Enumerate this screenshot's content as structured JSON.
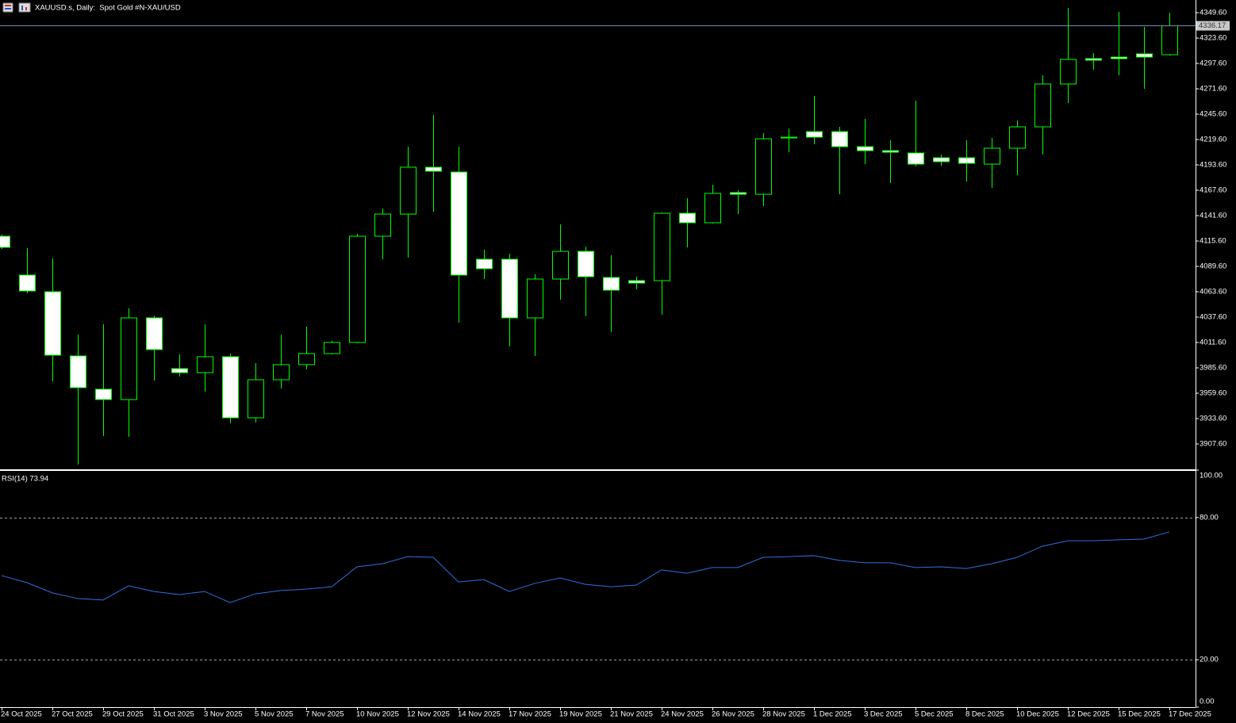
{
  "chart_data": [
    {
      "type": "candlestick",
      "title": "XAUUSD.s, Daily:  Spot Gold #N-XAU/USD",
      "categories": [
        "24 Oct 2025",
        null,
        "27 Oct 2025",
        null,
        "29 Oct 2025",
        null,
        "31 Oct 2025",
        null,
        "3 Nov 2025",
        null,
        "5 Nov 2025",
        null,
        "7 Nov 2025",
        null,
        "10 Nov 2025",
        null,
        "12 Nov 2025",
        null,
        "14 Nov 2025",
        null,
        "17 Nov 2025",
        null,
        "19 Nov 2025",
        null,
        "21 Nov 2025",
        null,
        "24 Nov 2025",
        null,
        "26 Nov 2025",
        null,
        "28 Nov 2025",
        null,
        "1 Dec 2025",
        null,
        "3 Dec 2025",
        null,
        "5 Dec 2025",
        null,
        "8 Dec 2025",
        null,
        "10 Dec 2025",
        null,
        "12 Dec 2025",
        null,
        "15 Dec 2025",
        null,
        "17 Dec 2025"
      ],
      "open": [
        4120.5,
        4080.7,
        4063.6,
        3997.8,
        3963.7,
        3953.1,
        4036.8,
        3984.8,
        3980.7,
        3997.0,
        3934.4,
        3973.4,
        3988.9,
        4000.2,
        4011.6,
        4120.5,
        4143.2,
        4191.2,
        4186.3,
        4096.9,
        4096.9,
        4036.8,
        4076.6,
        4105.0,
        4078.2,
        4075.0,
        4075.0,
        4144.0,
        4134.3,
        4165.2,
        4163.5,
        4221.2,
        4227.7,
        4227.7,
        4212.3,
        4208.2,
        4205.8,
        4200.9,
        4200.9,
        4194.4,
        4210.7,
        4232.6,
        4276.5,
        4302.5,
        4304.1,
        4307.4,
        4306.5
      ],
      "high": [
        4122.1,
        4108.3,
        4097.7,
        4019.7,
        4030.3,
        4046.5,
        4039.2,
        3999.4,
        4030.3,
        4000.2,
        3990.5,
        4019.7,
        4027.9,
        4013.2,
        4122.9,
        4148.9,
        4212.3,
        4244.8,
        4212.3,
        4106.7,
        4102.6,
        4081.5,
        4132.7,
        4109.9,
        4101.0,
        4079.0,
        4144.9,
        4159.5,
        4173.3,
        4167.6,
        4226.1,
        4231.0,
        4264.3,
        4232.6,
        4240.7,
        4218.8,
        4259.4,
        4204.2,
        4218.8,
        4221.2,
        4239.1,
        4285.4,
        4354.5,
        4308.2,
        4350.4,
        4335.0,
        4349.6
      ],
      "low": [
        4107.5,
        4062.0,
        3971.8,
        3886.5,
        3915.7,
        3914.9,
        3972.6,
        3976.7,
        3961.2,
        3928.7,
        3929.5,
        3964.5,
        3984.0,
        3999.4,
        4010.8,
        4096.9,
        4098.5,
        4145.7,
        4031.9,
        4076.6,
        4007.5,
        3997.8,
        4055.5,
        4038.4,
        4022.2,
        4066.0,
        4040.0,
        4109.1,
        4133.5,
        4143.2,
        4151.4,
        4206.6,
        4214.7,
        4163.5,
        4194.4,
        4174.9,
        4192.0,
        4192.8,
        4176.5,
        4170.0,
        4183.0,
        4204.2,
        4257.0,
        4291.1,
        4285.4,
        4271.6,
        4305.5
      ],
      "close": [
        4109.1,
        4064.4,
        3998.6,
        3965.3,
        3953.1,
        4036.8,
        4004.3,
        3980.7,
        3997.0,
        3934.4,
        3973.4,
        3988.9,
        4000.2,
        4011.6,
        4120.5,
        4143.2,
        4191.2,
        4187.1,
        4080.7,
        4087.2,
        4036.8,
        4076.6,
        4105.0,
        4079.0,
        4065.2,
        4072.5,
        4144.0,
        4134.3,
        4164.4,
        4163.5,
        4220.4,
        4222.0,
        4222.0,
        4212.3,
        4208.2,
        4206.6,
        4194.4,
        4196.9,
        4195.2,
        4210.7,
        4232.6,
        4276.5,
        4301.7,
        4300.9,
        4302.5,
        4304.1,
        4336.17
      ],
      "wick_color": "#00ff00",
      "up_fill": "#000000",
      "down_fill": "#ffffff",
      "last_price": 4336.17,
      "last_price_color": "#6b8fb8",
      "ylim": [
        3881.6,
        4362.6
      ],
      "yticks": [
        {
          "value": 3907.6,
          "label": "3907.60"
        },
        {
          "value": 3933.6,
          "label": "3933.60"
        },
        {
          "value": 3959.6,
          "label": "3959.60"
        },
        {
          "value": 3985.6,
          "label": "3985.60"
        },
        {
          "value": 4011.6,
          "label": "4011.60"
        },
        {
          "value": 4037.6,
          "label": "4037.60"
        },
        {
          "value": 4063.6,
          "label": "4063.60"
        },
        {
          "value": 4089.6,
          "label": "4089.60"
        },
        {
          "value": 4115.6,
          "label": "4115.60"
        },
        {
          "value": 4141.6,
          "label": "4141.60"
        },
        {
          "value": 4167.6,
          "label": "4167.60"
        },
        {
          "value": 4193.6,
          "label": "4193.60"
        },
        {
          "value": 4219.6,
          "label": "4219.60"
        },
        {
          "value": 4245.6,
          "label": "4245.60"
        },
        {
          "value": 4271.6,
          "label": "4271.60"
        },
        {
          "value": 4297.6,
          "label": "4297.60"
        },
        {
          "value": 4323.6,
          "label": "4323.60"
        },
        {
          "value": 4349.6,
          "label": "4349.60"
        }
      ]
    },
    {
      "type": "line",
      "title": "RSI(14) 73.94",
      "values": [
        55.5,
        52.5,
        48.2,
        45.8,
        45.2,
        51.2,
        48.8,
        47.5,
        48.8,
        44.1,
        47.8,
        49.2,
        49.8,
        50.8,
        59.2,
        60.5,
        63.5,
        63.2,
        52.8,
        53.8,
        48.8,
        52.2,
        54.5,
        51.8,
        50.8,
        51.5,
        57.9,
        56.5,
        58.9,
        58.9,
        63.2,
        63.5,
        63.9,
        61.9,
        60.9,
        60.9,
        58.9,
        59.2,
        58.5,
        60.5,
        63.2,
        67.9,
        70.2,
        70.2,
        70.6,
        70.9,
        73.94
      ],
      "color": "#2f6fe0",
      "levels": [
        80,
        20
      ],
      "level_color": "#a0a0a0",
      "ylim": [
        0,
        100
      ],
      "yticks": [
        {
          "value": 100,
          "label": "100.00"
        },
        {
          "value": 80,
          "label": "80.00"
        },
        {
          "value": 20,
          "label": "20.00"
        },
        {
          "value": 0,
          "label": "0.00"
        }
      ]
    }
  ]
}
